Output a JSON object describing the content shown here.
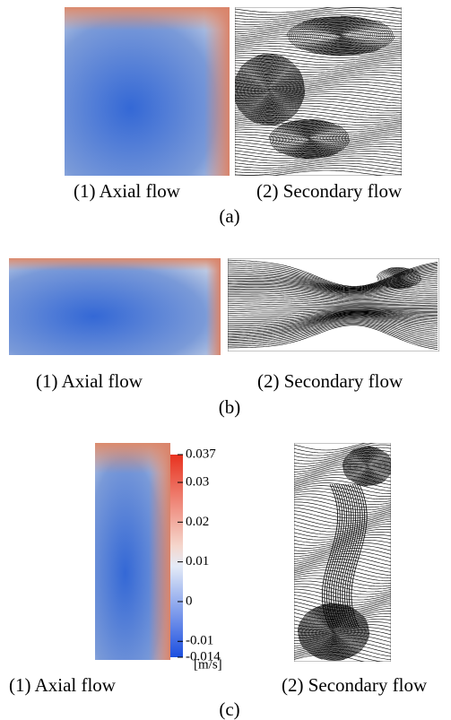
{
  "panels": [
    {
      "label": "(a)",
      "axial_caption": "(1) Axial flow",
      "secondary_caption": "(2) Secondary flow"
    },
    {
      "label": "(b)",
      "axial_caption": "(1) Axial flow",
      "secondary_caption": "(2) Secondary flow"
    },
    {
      "label": "(c)",
      "axial_caption": "(1) Axial flow",
      "secondary_caption": "(2) Secondary flow"
    }
  ],
  "colorbar": {
    "ticks": [
      -0.014,
      -0.01,
      0,
      0.01,
      0.02,
      0.03,
      0.037
    ],
    "unit": "[m/s]"
  }
}
